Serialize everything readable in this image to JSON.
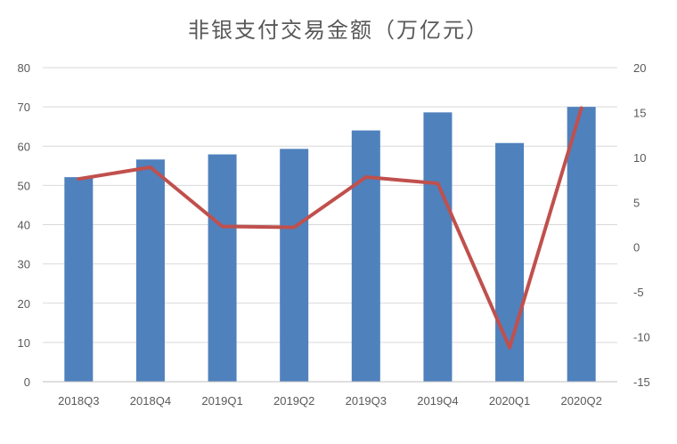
{
  "chart_data": {
    "type": "bar",
    "title": "非银支付交易金额（万亿元）",
    "categories": [
      "2018Q3",
      "2018Q4",
      "2019Q1",
      "2019Q2",
      "2019Q3",
      "2019Q4",
      "2020Q1",
      "2020Q2"
    ],
    "series": [
      {
        "type": "bar",
        "axis": "left",
        "color": "#4f81bd",
        "values": [
          52.1,
          56.6,
          57.9,
          59.3,
          64.0,
          68.6,
          60.8,
          70.0
        ]
      },
      {
        "type": "line",
        "axis": "right",
        "color": "#c0504d",
        "values": [
          7.6,
          8.9,
          2.3,
          2.2,
          7.8,
          7.1,
          -11.2,
          15.5
        ]
      }
    ],
    "y_left": {
      "min": 0,
      "max": 80,
      "step": 10,
      "ticks": [
        "0",
        "10",
        "20",
        "30",
        "40",
        "50",
        "60",
        "70",
        "80"
      ]
    },
    "y_right": {
      "min": -15,
      "max": 20,
      "step": 5,
      "ticks": [
        "-15",
        "-10",
        "-5",
        "0",
        "5",
        "10",
        "15",
        "20"
      ]
    },
    "grid": true,
    "legend": "none"
  }
}
